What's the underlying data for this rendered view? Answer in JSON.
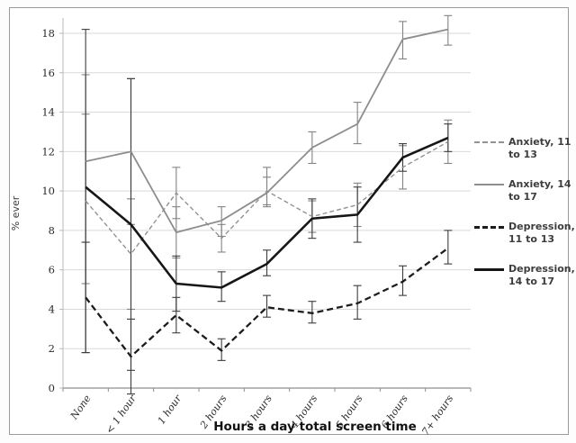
{
  "colors": {
    "anxiety_gray": "#8f8f8f",
    "depression_black": "#181818",
    "gridline": "#d9d9d9",
    "axis_line": "#8f8f8f",
    "y_axis_line": "#b8b8b8",
    "frame_border": "#9b9b9b",
    "tick_text": "#2b2b2b",
    "legend_text": "#3d3d3d"
  },
  "chart_data": {
    "type": "line",
    "title": "",
    "xlabel": "Hours a day total screen time",
    "ylabel": "% ever",
    "ylim": [
      0,
      18
    ],
    "yticks": [
      0,
      2,
      4,
      6,
      8,
      10,
      12,
      14,
      16,
      18
    ],
    "grid": true,
    "legend_position": "right",
    "error_bars": true,
    "categories": [
      "None",
      "< 1 hour",
      "1 hour",
      "2 hours",
      "3 hours",
      "4 hours",
      "5 hours",
      "6 hours",
      "7+ hours"
    ],
    "series": [
      {
        "name": "Anxiety, 11 to 13",
        "legend_lines": [
          "Anxiety, 11",
          "to 13"
        ],
        "line_style": "dashed",
        "color": "#929292",
        "width": 1.4,
        "dash": "5,3",
        "err_color": "#838383",
        "values": [
          9.5,
          6.8,
          9.9,
          7.6,
          10.0,
          8.7,
          9.3,
          11.2,
          12.5
        ],
        "err_lo": [
          5.3,
          4.0,
          8.6,
          6.9,
          9.3,
          7.9,
          8.2,
          10.1,
          11.4
        ],
        "err_hi": [
          13.9,
          9.6,
          11.2,
          8.3,
          11.2,
          9.5,
          10.4,
          12.3,
          13.6
        ]
      },
      {
        "name": "Anxiety, 14 to 17",
        "legend_lines": [
          "Anxiety, 14",
          "to 17"
        ],
        "line_style": "solid",
        "color": "#8d8d8d",
        "width": 1.8,
        "dash": "",
        "err_color": "#838383",
        "values": [
          11.5,
          12.0,
          7.9,
          8.5,
          9.9,
          12.2,
          13.4,
          17.7,
          18.2
        ],
        "err_lo": [
          7.4,
          8.3,
          6.6,
          7.7,
          9.2,
          11.4,
          12.4,
          16.7,
          17.4
        ],
        "err_hi": [
          15.9,
          15.7,
          9.2,
          9.2,
          10.7,
          13.0,
          14.5,
          18.6,
          18.9
        ]
      },
      {
        "name": "Depression, 11 to 13",
        "legend_lines": [
          "Depression,",
          "11 to 13"
        ],
        "line_style": "dashed",
        "color": "#1c1c1c",
        "width": 2.3,
        "dash": "7,4",
        "err_color": "#3c3c3c",
        "values": [
          4.6,
          1.6,
          3.7,
          1.9,
          4.1,
          3.8,
          4.3,
          5.4,
          7.1
        ],
        "err_lo": [
          1.8,
          -0.3,
          2.8,
          1.4,
          3.6,
          3.3,
          3.5,
          4.7,
          6.3
        ],
        "err_hi": [
          7.4,
          3.5,
          4.6,
          2.5,
          4.7,
          4.4,
          5.2,
          6.2,
          8.0
        ]
      },
      {
        "name": "Depression, 14 to 17",
        "legend_lines": [
          "Depression,",
          "14 to 17"
        ],
        "line_style": "solid",
        "color": "#161616",
        "width": 2.6,
        "dash": "",
        "err_color": "#3c3c3c",
        "values": [
          10.2,
          8.3,
          5.3,
          5.1,
          6.3,
          8.6,
          8.8,
          11.7,
          12.7
        ],
        "err_lo": [
          1.8,
          0.9,
          3.9,
          4.4,
          5.7,
          7.6,
          7.4,
          11.0,
          12.0
        ],
        "err_hi": [
          18.2,
          15.7,
          6.7,
          5.9,
          7.0,
          9.6,
          10.2,
          12.4,
          13.4
        ]
      }
    ]
  }
}
